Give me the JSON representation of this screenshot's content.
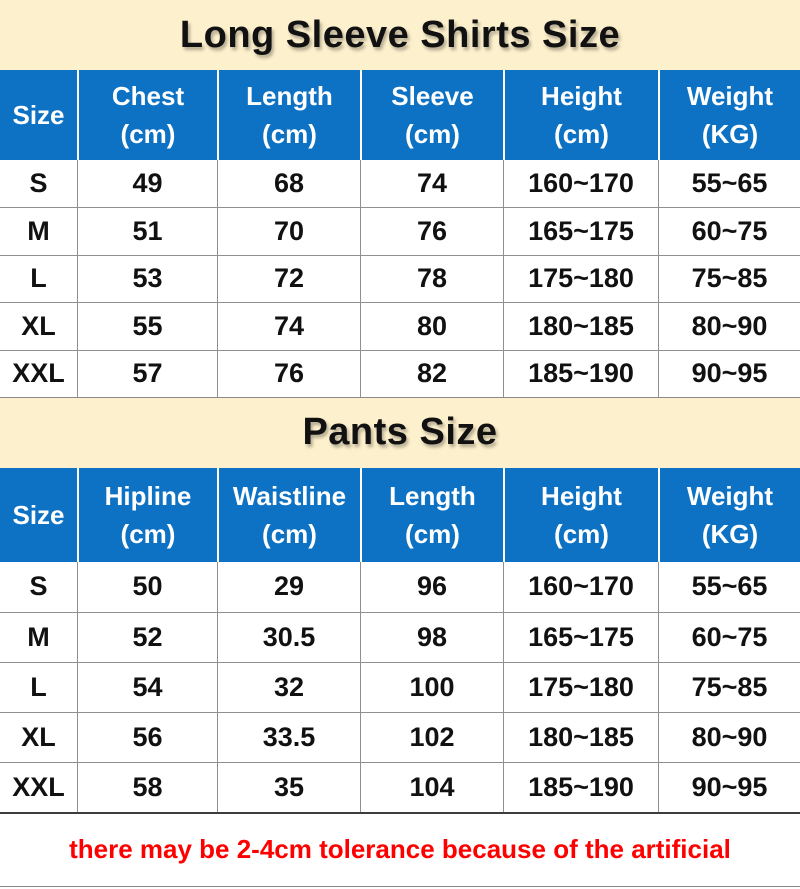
{
  "colors": {
    "banner_bg": "#fdf0cc",
    "header_bg": "#0d72c4",
    "header_text": "#ffffff",
    "body_text": "#111111",
    "grid_line": "#8f8f8f",
    "note_text": "#fe0000"
  },
  "tables": [
    {
      "title": "Long Sleeve Shirts Size",
      "columns": [
        {
          "label": "Size",
          "unit": ""
        },
        {
          "label": "Chest",
          "unit": "(cm)"
        },
        {
          "label": "Length",
          "unit": "(cm)"
        },
        {
          "label": "Sleeve",
          "unit": "(cm)"
        },
        {
          "label": "Height",
          "unit": "(cm)"
        },
        {
          "label": "Weight",
          "unit": "(KG)"
        }
      ],
      "rows": [
        [
          "S",
          "49",
          "68",
          "74",
          "160~170",
          "55~65"
        ],
        [
          "M",
          "51",
          "70",
          "76",
          "165~175",
          "60~75"
        ],
        [
          "L",
          "53",
          "72",
          "78",
          "175~180",
          "75~85"
        ],
        [
          "XL",
          "55",
          "74",
          "80",
          "180~185",
          "80~90"
        ],
        [
          "XXL",
          "57",
          "76",
          "82",
          "185~190",
          "90~95"
        ]
      ]
    },
    {
      "title": "Pants Size",
      "columns": [
        {
          "label": "Size",
          "unit": ""
        },
        {
          "label": "Hipline",
          "unit": "(cm)"
        },
        {
          "label": "Waistline",
          "unit": "(cm)"
        },
        {
          "label": "Length",
          "unit": "(cm)"
        },
        {
          "label": "Height",
          "unit": "(cm)"
        },
        {
          "label": "Weight",
          "unit": "(KG)"
        }
      ],
      "rows": [
        [
          "S",
          "50",
          "29",
          "96",
          "160~170",
          "55~65"
        ],
        [
          "M",
          "52",
          "30.5",
          "98",
          "165~175",
          "60~75"
        ],
        [
          "L",
          "54",
          "32",
          "100",
          "175~180",
          "75~85"
        ],
        [
          "XL",
          "56",
          "33.5",
          "102",
          "180~185",
          "80~90"
        ],
        [
          "XXL",
          "58",
          "35",
          "104",
          "185~190",
          "90~95"
        ]
      ]
    }
  ],
  "note": "there may be 2-4cm tolerance because of the artificial"
}
